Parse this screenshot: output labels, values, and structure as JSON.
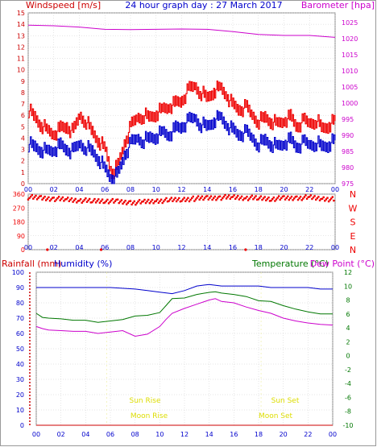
{
  "colors": {
    "windspeed": "#cc0000",
    "gust": "#ee0000",
    "avg": "#0000cc",
    "barometer": "#cc00cc",
    "direction": "#ee0000",
    "humidity": "#0000cc",
    "rainfall": "#cc0000",
    "temperature": "#007700",
    "dewpoint": "#cc00cc",
    "sun": "#dddd00",
    "frame": "#888888",
    "grid": "#cccccc",
    "title": "#0000cc"
  },
  "header": {
    "windspeed_label": "Windspeed [m/s]",
    "title": "24 hour graph day : 27 March 2017",
    "barometer_label": "Barometer [hpa]"
  },
  "lower_header": {
    "rainfall_label": "Rainfall (mm)",
    "humidity_label": "Humidity (%)",
    "temperature_label": "Temperature (°C)",
    "dewpoint_label": "Dew Point (°C)"
  },
  "events": {
    "sun_rise": "Sun Rise",
    "sun_set": "Sun Set",
    "moon_rise": "Moon Rise",
    "moon_set": "Moon Set"
  },
  "chart_data": [
    {
      "type": "line",
      "title": "24 hour graph day : 27 March 2017",
      "x_axis": {
        "label": "",
        "ticks": [
          "00",
          "02",
          "04",
          "06",
          "08",
          "10",
          "12",
          "14",
          "16",
          "18",
          "20",
          "22",
          "00"
        ],
        "range_hours": [
          0,
          24
        ]
      },
      "y_left": {
        "label": "Windspeed [m/s]",
        "range": [
          0,
          15
        ],
        "ticks": [
          0,
          1,
          2,
          3,
          4,
          5,
          6,
          7,
          8,
          9,
          10,
          11,
          12,
          13,
          14,
          15
        ]
      },
      "y_right": {
        "label": "Barometer [hpa]",
        "range": [
          975,
          1028
        ],
        "ticks": [
          975,
          980,
          985,
          990,
          995,
          1000,
          1005,
          1010,
          1015,
          1020,
          1025
        ]
      },
      "series": [
        {
          "name": "Windspeed [m/s]",
          "role": "gust",
          "axis": "left",
          "x": [
            0,
            0.5,
            1,
            1.5,
            2,
            2.5,
            3,
            3.5,
            4,
            4.5,
            5,
            5.5,
            6,
            6.5,
            7,
            7.5,
            8,
            8.5,
            9,
            9.5,
            10,
            10.5,
            11,
            11.5,
            12,
            12.5,
            13,
            13.5,
            14,
            14.5,
            15,
            15.5,
            16,
            16.5,
            17,
            17.5,
            18,
            18.5,
            19,
            19.5,
            20,
            20.5,
            21,
            21.5,
            22,
            22.5,
            23,
            23.5,
            24
          ],
          "values": [
            6.5,
            5.8,
            5.2,
            4.6,
            4.4,
            4.8,
            5.0,
            4.5,
            6.0,
            5.5,
            4.5,
            3.8,
            3.0,
            1.0,
            1.5,
            3.5,
            5.0,
            5.8,
            6.0,
            5.8,
            6.2,
            6.5,
            6.8,
            7.0,
            7.3,
            8.2,
            8.6,
            8.0,
            7.5,
            8.2,
            8.4,
            7.8,
            6.8,
            6.5,
            6.7,
            6.0,
            5.5,
            5.8,
            5.5,
            5.2,
            5.6,
            5.8,
            5.0,
            5.5,
            5.3,
            5.6,
            4.8,
            5.2,
            5.5
          ]
        },
        {
          "name": "",
          "role": "average",
          "axis": "left",
          "x": [
            0,
            0.5,
            1,
            1.5,
            2,
            2.5,
            3,
            3.5,
            4,
            4.5,
            5,
            5.5,
            6,
            6.5,
            7,
            7.5,
            8,
            8.5,
            9,
            9.5,
            10,
            10.5,
            11,
            11.5,
            12,
            12.5,
            13,
            13.5,
            14,
            14.5,
            15,
            15.5,
            16,
            16.5,
            17,
            17.5,
            18,
            18.5,
            19,
            19.5,
            20,
            20.5,
            21,
            21.5,
            22,
            22.5,
            23,
            23.5,
            24
          ],
          "values": [
            3.5,
            3.2,
            3.0,
            2.8,
            3.0,
            3.3,
            3.0,
            2.8,
            3.5,
            3.2,
            2.8,
            2.2,
            1.2,
            0.5,
            0.8,
            2.5,
            3.5,
            4.0,
            3.8,
            4.0,
            4.2,
            4.5,
            4.3,
            4.8,
            5.0,
            5.5,
            5.8,
            5.2,
            5.0,
            5.6,
            5.8,
            5.2,
            4.6,
            4.3,
            4.5,
            4.0,
            3.5,
            3.8,
            3.5,
            3.2,
            3.6,
            3.8,
            3.2,
            3.6,
            3.4,
            3.6,
            3.2,
            3.5,
            3.8
          ]
        },
        {
          "name": "Barometer [hpa]",
          "role": "barometer",
          "axis": "right",
          "x": [
            0,
            2,
            4,
            6,
            8,
            10,
            12,
            14,
            16,
            18,
            20,
            22,
            24
          ],
          "values": [
            1024.2,
            1024.0,
            1023.6,
            1022.9,
            1022.8,
            1022.9,
            1023.0,
            1022.9,
            1022.2,
            1021.3,
            1021.0,
            1021.0,
            1020.4
          ]
        }
      ]
    },
    {
      "type": "scatter",
      "title": "",
      "x_axis": {
        "label": "",
        "ticks": [
          "00",
          "02",
          "04",
          "06",
          "08",
          "10",
          "12",
          "14",
          "16",
          "18",
          "20",
          "22",
          "00"
        ],
        "range_hours": [
          0,
          24
        ]
      },
      "y_left": {
        "label": "",
        "range": [
          0,
          360
        ],
        "ticks": [
          0,
          90,
          180,
          270,
          360
        ]
      },
      "y_right": {
        "label": "",
        "ticks": [
          "N",
          "E",
          "S",
          "W",
          "N"
        ]
      },
      "series": [
        {
          "name": "",
          "x": [
            0,
            1,
            2,
            3,
            4,
            5,
            6,
            7,
            8,
            9,
            10,
            11,
            12,
            13,
            14,
            15,
            16,
            17,
            18,
            19,
            20,
            21,
            22,
            23,
            24
          ],
          "values": [
            340,
            335,
            330,
            325,
            320,
            315,
            318,
            310,
            305,
            308,
            315,
            320,
            325,
            330,
            335,
            338,
            340,
            336,
            334,
            330,
            332,
            335,
            338,
            330,
            325
          ]
        },
        {
          "name": "",
          "x": [
            1.5,
            5.7,
            17
          ],
          "values": [
            0,
            0,
            0
          ]
        }
      ]
    },
    {
      "type": "line",
      "title": "",
      "x_axis": {
        "label": "",
        "ticks": [
          "00",
          "02",
          "04",
          "06",
          "08",
          "10",
          "12",
          "14",
          "16",
          "18",
          "20",
          "22",
          "00"
        ],
        "range_hours": [
          0,
          24
        ]
      },
      "y_left": {
        "label": "Rainfall (mm)  Humidity (%)",
        "range": [
          0,
          100
        ],
        "ticks": [
          0,
          10,
          20,
          30,
          40,
          50,
          60,
          70,
          80,
          90,
          100
        ]
      },
      "y_right": {
        "label": "Temperature (°C) Dew Point (°C)",
        "range": [
          -10,
          12
        ],
        "ticks": [
          -10,
          -8,
          -6,
          -4,
          -2,
          0,
          2,
          4,
          6,
          8,
          10,
          12
        ]
      },
      "series": [
        {
          "name": "Humidity (%)",
          "axis": "left",
          "x": [
            0,
            2,
            4,
            6,
            8,
            9,
            10,
            11,
            12,
            13,
            14,
            15,
            16,
            17,
            18,
            19,
            20,
            21,
            22,
            23,
            24
          ],
          "values": [
            90,
            90,
            90,
            90,
            89,
            88,
            87,
            86,
            88,
            91,
            92,
            91,
            91,
            91,
            91,
            90,
            90,
            90,
            90,
            89,
            89
          ]
        },
        {
          "name": "Temperature (°C)",
          "axis": "right",
          "x": [
            0,
            0.5,
            1,
            2,
            3,
            4,
            5,
            6,
            7,
            8,
            9,
            10,
            10.5,
            11,
            12,
            13,
            14,
            14.5,
            15,
            16,
            17,
            18,
            19,
            20,
            21,
            22,
            23,
            24
          ],
          "values": [
            6.1,
            5.5,
            5.4,
            5.3,
            5.1,
            5.1,
            4.8,
            5.0,
            5.2,
            5.7,
            5.8,
            6.2,
            7.2,
            8.2,
            8.3,
            8.8,
            9.1,
            9.2,
            9.0,
            8.8,
            8.5,
            7.9,
            7.8,
            7.2,
            6.7,
            6.3,
            6.0,
            6.0
          ]
        },
        {
          "name": "Dew Point (°C)",
          "axis": "right",
          "x": [
            0,
            0.5,
            1,
            2,
            3,
            4,
            5,
            6,
            7,
            8,
            9,
            10,
            10.5,
            11,
            12,
            13,
            14,
            14.5,
            15,
            16,
            17,
            18,
            19,
            20,
            21,
            22,
            23,
            24
          ],
          "values": [
            4.2,
            3.9,
            3.7,
            3.6,
            3.5,
            3.5,
            3.2,
            3.4,
            3.6,
            2.8,
            3.1,
            4.2,
            5.2,
            6.1,
            6.8,
            7.4,
            8.0,
            8.2,
            7.8,
            7.6,
            7.0,
            6.5,
            6.1,
            5.4,
            5.0,
            4.7,
            4.5,
            4.4
          ]
        },
        {
          "name": "Rainfall (mm)",
          "axis": "left",
          "x": [
            0,
            24
          ],
          "values": [
            0,
            0
          ]
        }
      ]
    }
  ]
}
